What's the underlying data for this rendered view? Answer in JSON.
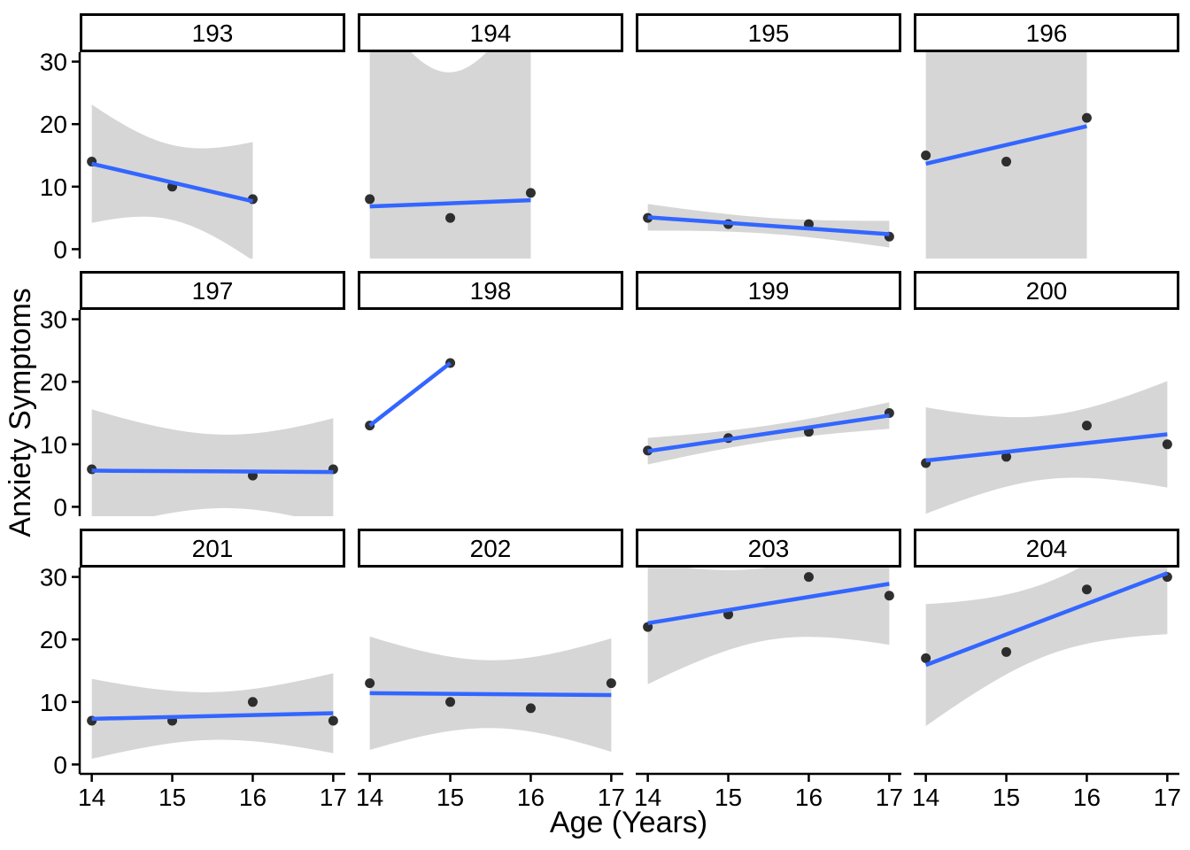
{
  "chart_data": {
    "type": "scatter",
    "title": "",
    "xlabel": "Age (Years)",
    "ylabel": "Anxiety Symptoms",
    "x_ticks": [
      14,
      15,
      16,
      17
    ],
    "y_ticks": [
      0,
      10,
      20,
      30
    ],
    "xlim": [
      13.85,
      17.15
    ],
    "ylim": [
      -1.5,
      31.5
    ],
    "grid": "off",
    "legend": "none",
    "layout": "facet-grid 3 rows x 4 cols",
    "smoother": {
      "method": "lm",
      "ci_level": 0.95
    },
    "colors": {
      "line": "#3366FF",
      "band": "#D6D6D6",
      "point": "#1E1E1E",
      "axis": "#000000",
      "strip_fill": "#FFFFFF",
      "strip_border": "#000000",
      "background": "#FFFFFF"
    },
    "facets": [
      {
        "label": "193",
        "x": [
          14,
          15,
          16
        ],
        "y": [
          14,
          10,
          8
        ]
      },
      {
        "label": "194",
        "x": [
          14,
          15,
          16
        ],
        "y": [
          8,
          5,
          9
        ]
      },
      {
        "label": "195",
        "x": [
          14,
          15,
          16,
          17
        ],
        "y": [
          5,
          4,
          4,
          2
        ]
      },
      {
        "label": "196",
        "x": [
          14,
          15,
          16
        ],
        "y": [
          15,
          14,
          21
        ]
      },
      {
        "label": "197",
        "x": [
          14,
          16,
          17
        ],
        "y": [
          6,
          5,
          6
        ]
      },
      {
        "label": "198",
        "x": [
          14,
          15
        ],
        "y": [
          13,
          23
        ]
      },
      {
        "label": "199",
        "x": [
          14,
          15,
          16,
          17
        ],
        "y": [
          9,
          11,
          12,
          15
        ]
      },
      {
        "label": "200",
        "x": [
          14,
          15,
          16,
          17
        ],
        "y": [
          7,
          8,
          13,
          10
        ]
      },
      {
        "label": "201",
        "x": [
          14,
          15,
          16,
          17
        ],
        "y": [
          7,
          7,
          10,
          7
        ]
      },
      {
        "label": "202",
        "x": [
          14,
          15,
          16,
          17
        ],
        "y": [
          13,
          10,
          9,
          13
        ]
      },
      {
        "label": "203",
        "x": [
          14,
          15,
          16,
          17
        ],
        "y": [
          22,
          24,
          30,
          27
        ]
      },
      {
        "label": "204",
        "x": [
          14,
          15,
          16,
          17
        ],
        "y": [
          17,
          18,
          28,
          30
        ]
      }
    ]
  }
}
